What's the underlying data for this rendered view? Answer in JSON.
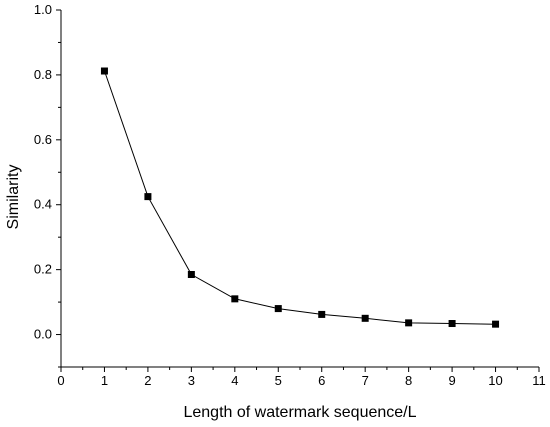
{
  "chart_data": {
    "type": "line",
    "title": "",
    "xlabel": "Length of watermark sequence/L",
    "ylabel": "Similarity",
    "xlim": [
      0,
      11
    ],
    "ylim": [
      -0.1,
      1.0
    ],
    "xticks": [
      "0",
      "1",
      "2",
      "3",
      "4",
      "5",
      "6",
      "7",
      "8",
      "9",
      "10",
      "11"
    ],
    "yticks": [
      "0.0",
      "0.2",
      "0.4",
      "0.6",
      "0.8",
      "1.0"
    ],
    "grid": false,
    "marker": "square",
    "colors": {
      "line": "#000000",
      "marker": "#000000",
      "axis": "#000000"
    },
    "series": [
      {
        "x": [
          1,
          2,
          3,
          4,
          5,
          6,
          7,
          8,
          9,
          10
        ],
        "values": [
          0.812,
          0.425,
          0.185,
          0.11,
          0.08,
          0.062,
          0.05,
          0.036,
          0.034,
          0.032
        ]
      }
    ]
  }
}
